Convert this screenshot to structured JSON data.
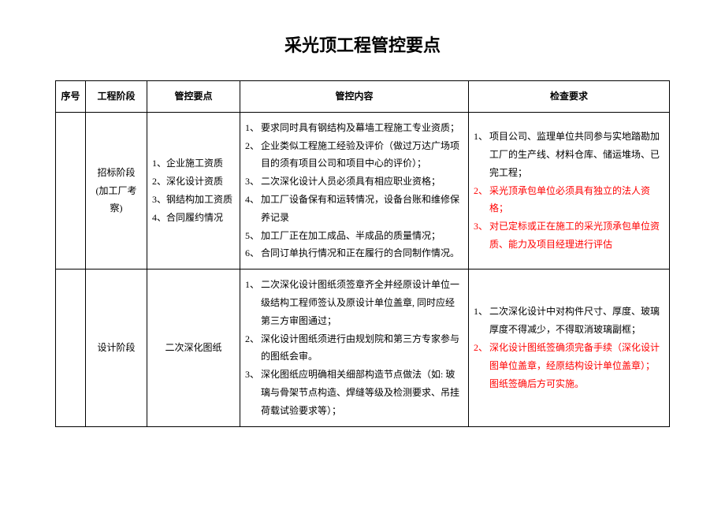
{
  "title": "采光顶工程管控要点",
  "headers": {
    "seq": "序号",
    "stage": "工程阶段",
    "points": "管控要点",
    "content": "管控内容",
    "req": "检查要求"
  },
  "rows": [
    {
      "seq": "",
      "stage": "招标阶段 (加工厂考察)",
      "points": [
        "1、企业施工资质",
        "2、深化设计资质",
        "3、钢结构加工资质",
        "4、合同履约情况"
      ],
      "content": [
        {
          "n": "1、",
          "t": "要求同时具有钢结构及幕墙工程施工专业资质；"
        },
        {
          "n": "2、",
          "t": "企业类似工程施工经验及评价（做过万达广场项目的须有项目公司和项目中心的评价）；"
        },
        {
          "n": "3、",
          "t": "二次深化设计人员必须具有相应职业资格；"
        },
        {
          "n": "4、",
          "t": "加工厂设备保有和运转情况，设备台账和维修保养记录"
        },
        {
          "n": "5、",
          "t": "加工厂正在加工成品、半成品的质量情况；"
        },
        {
          "n": "6、",
          "t": "合同订单执行情况和正在履行的合同制作情况。"
        }
      ],
      "req": [
        {
          "n": "1、",
          "t": "项目公司、监理单位共同参与实地踏勘加工厂的生产线、材料仓库、储运堆场、已完工程；",
          "red": false
        },
        {
          "n": "2、",
          "t": "采光顶承包单位必须具有独立的法人资格；",
          "red": true
        },
        {
          "n": "3、",
          "t": "对已定标或正在施工的采光顶承包单位资质、能力及项目经理进行评估",
          "red": true
        }
      ]
    },
    {
      "seq": "",
      "stage": "设计阶段",
      "points_single": "二次深化图纸",
      "content": [
        {
          "n": "1、",
          "t": "二次深化设计图纸须签章齐全并经原设计单位一级结构工程师签认及原设计单位盖章, 同时应经第三方审图通过；"
        },
        {
          "n": "2、",
          "t": "深化设计图纸须进行由规划院和第三方专家参与的图纸会审。"
        },
        {
          "n": "3、",
          "t": "深化图纸应明确相关细部构造节点做法（如: 玻璃与骨架节点构造、焊缝等级及检测要求、吊挂荷载试验要求等）；"
        }
      ],
      "req": [
        {
          "n": "1、",
          "t": "二次深化设计中对构件尺寸、厚度、玻璃厚度不得减少，不得取消玻璃副框；",
          "red": false
        },
        {
          "n": "2、",
          "t": "深化设计图纸签确须完备手续（深化设计图单位盖章，经原结构设计单位盖章）；图纸签确后方可实施。",
          "red": true
        }
      ]
    }
  ]
}
